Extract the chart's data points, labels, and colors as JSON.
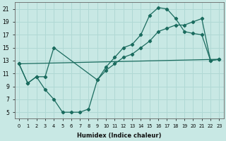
{
  "xlabel": "Humidex (Indice chaleur)",
  "bg_color": "#c8e8e4",
  "grid_color": "#b0d8d4",
  "line_color": "#1a6b5e",
  "xlim": [
    -0.5,
    23.5
  ],
  "ylim": [
    4.0,
    22.0
  ],
  "xticks": [
    0,
    1,
    2,
    3,
    4,
    5,
    6,
    7,
    8,
    9,
    10,
    11,
    12,
    13,
    14,
    15,
    16,
    17,
    18,
    19,
    20,
    21,
    22,
    23
  ],
  "yticks": [
    5,
    7,
    9,
    11,
    13,
    15,
    17,
    19,
    21
  ],
  "line1_x": [
    0,
    1,
    2,
    3,
    4,
    5,
    6,
    7,
    8,
    9,
    10,
    11,
    12,
    13,
    14,
    15,
    16,
    17,
    18,
    19,
    20,
    21,
    22,
    23
  ],
  "line1_y": [
    12.5,
    9.5,
    10.5,
    8.5,
    7.0,
    5.0,
    5.0,
    5.0,
    5.5,
    10.0,
    12.0,
    13.5,
    15.0,
    15.5,
    17.0,
    20.0,
    21.2,
    21.0,
    19.5,
    17.5,
    17.2,
    17.0,
    13.0,
    13.2
  ],
  "line2_x": [
    0,
    1,
    2,
    3,
    4,
    9,
    10,
    11,
    12,
    13,
    14,
    15,
    16,
    17,
    18,
    19,
    20,
    21,
    22,
    23
  ],
  "line2_y": [
    12.5,
    9.5,
    10.5,
    10.5,
    15.0,
    10.0,
    11.5,
    12.5,
    13.5,
    14.0,
    15.0,
    16.0,
    17.5,
    18.0,
    18.5,
    18.5,
    19.0,
    19.5,
    13.0,
    13.2
  ],
  "line3_x": [
    0,
    23
  ],
  "line3_y": [
    12.5,
    13.2
  ]
}
